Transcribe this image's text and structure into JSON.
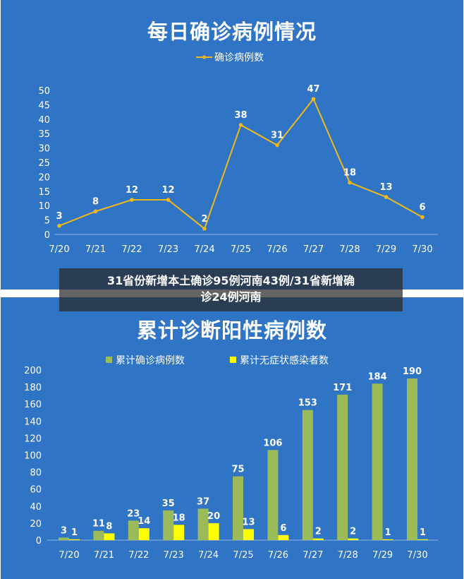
{
  "caption": {
    "line1": "31省份新增本土确诊95例河南43例/31省新增确",
    "line2": "诊24例河南"
  },
  "chart_data": [
    {
      "type": "line",
      "title": "每日确诊病例情况",
      "categories": [
        "7/20",
        "7/21",
        "7/22",
        "7/23",
        "7/24",
        "7/25",
        "7/26",
        "7/27",
        "7/28",
        "7/29",
        "7/30"
      ],
      "series": [
        {
          "name": "确诊病例数",
          "values": [
            3,
            8,
            12,
            12,
            2,
            38,
            31,
            47,
            18,
            13,
            6
          ],
          "color": "#f0b81c"
        }
      ],
      "y_ticks": [
        0,
        5,
        10,
        15,
        20,
        25,
        30,
        35,
        40,
        45,
        50
      ],
      "ylim": [
        0,
        50
      ],
      "legend_position": "top",
      "grid": false
    },
    {
      "type": "bar",
      "title": "累计诊断阳性病例数",
      "categories": [
        "7/20",
        "7/21",
        "7/22",
        "7/23",
        "7/24",
        "7/25",
        "7/26",
        "7/27",
        "7/28",
        "7/29",
        "7/30"
      ],
      "series": [
        {
          "name": "累计确诊病例数",
          "values": [
            3,
            11,
            23,
            35,
            37,
            75,
            106,
            153,
            171,
            184,
            190
          ],
          "color": "#9bbb59"
        },
        {
          "name": "累计无症状感染者数",
          "values": [
            1,
            8,
            14,
            18,
            20,
            13,
            6,
            2,
            2,
            1,
            1
          ],
          "color": "#ffff00"
        }
      ],
      "y_ticks": [
        0,
        20,
        40,
        60,
        80,
        100,
        120,
        140,
        160,
        180,
        200
      ],
      "ylim": [
        0,
        200
      ],
      "legend_position": "top",
      "grid": false
    }
  ]
}
